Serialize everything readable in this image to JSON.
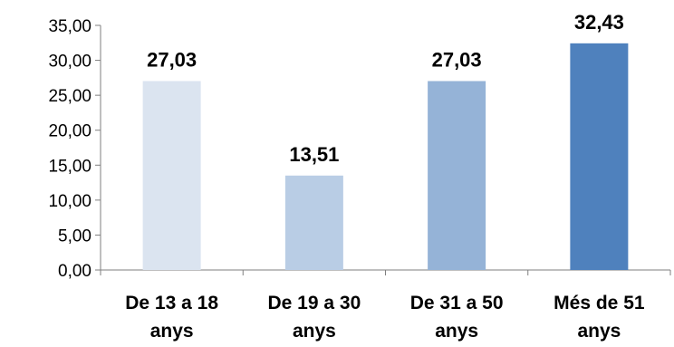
{
  "chart_data": {
    "type": "bar",
    "categories": [
      [
        "De 13 a 18",
        "anys"
      ],
      [
        "De 19 a 30",
        "anys"
      ],
      [
        "De 31 a 50",
        "anys"
      ],
      [
        "Més de 51",
        "anys"
      ]
    ],
    "values": [
      27.03,
      13.51,
      27.03,
      32.43
    ],
    "data_labels": [
      "27,03",
      "13,51",
      "27,03",
      "32,43"
    ],
    "bar_colors": [
      "#dbe4f0",
      "#b9cde5",
      "#95b3d7",
      "#4f81bd"
    ],
    "ylim": [
      0,
      35
    ],
    "yticks": [
      0,
      5,
      10,
      15,
      20,
      25,
      30,
      35
    ],
    "ytick_labels": [
      "0,00",
      "5,00",
      "10,00",
      "15,00",
      "20,00",
      "25,00",
      "30,00",
      "35,00"
    ],
    "grid": false,
    "legend": "none",
    "axis_color": "#7f7f7f"
  }
}
